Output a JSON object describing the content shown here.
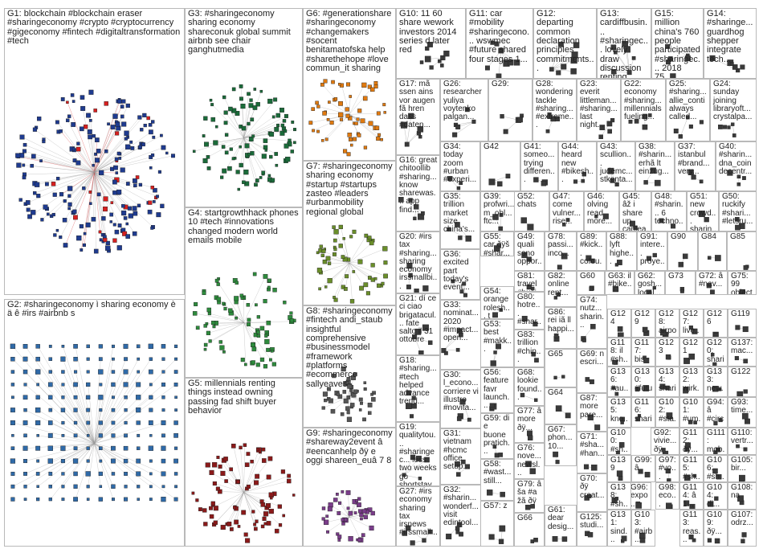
{
  "groups": [
    {
      "id": "G1",
      "label": "G1: blockchain #blockchain eraser #sharingeconomy #crypto #cryptocurrency #gigeconomy #fintech #digitaltransformation #tech",
      "color": "#1f3b8f",
      "accent": "#d62020"
    },
    {
      "id": "G2",
      "label": "G2: #sharingeconomy ì sharing economy è ä ê #irs #airbnb s",
      "color": "#2f6aa8"
    },
    {
      "id": "G3",
      "label": "G3: #sharingeconomy sharing economy shareconuk global summit airbnb see chair ganghutmedia",
      "color": "#1b6b3a"
    },
    {
      "id": "G4",
      "label": "G4: startgrowthhack phones 10 #tech #innovations changed modern world emails mobile",
      "color": "#2e8b3d"
    },
    {
      "id": "G5",
      "label": "G5: millennials renting things instead owning passing fad shift buyer behavior",
      "color": "#8b1a1a"
    },
    {
      "id": "G6",
      "label": "G6: #generationshare #sharingeconomy #changemakers #socent benitamatofska help #sharethehope #love commun_it sharing",
      "color": "#e07a10"
    },
    {
      "id": "G7",
      "label": "G7: #sharingeconomy sharing economy #startup #startups zasteo #leaders #urbanmobility regional global",
      "color": "#6a8e2a"
    },
    {
      "id": "G8",
      "label": "G8: #sharingeconomy #fintech andi_staub insightful comprehensive #businessmodel #framework #platforms #ecommerce sallyeaves",
      "color": "#555555"
    },
    {
      "id": "G9",
      "label": "G9: #sharingeconomy #shareway2event â #eencanhelp ðÿ e oggi shareen_euâ 7 8",
      "color": "#7a3d8a"
    },
    {
      "id": "G10",
      "label": "G10: 11 60 share wework investors 2014 series d later red",
      "color": "#3a3a3a"
    },
    {
      "id": "G11",
      "label": "G11: car #mobility #sharingecono... wswmec #future shared four stages 1...",
      "color": "#3a3a3a"
    },
    {
      "id": "G12",
      "label": "G12: departing common declaration principles commitments...",
      "color": "#3a3a3a"
    },
    {
      "id": "G13",
      "label": "G13: cardiffbusin... #sharingec... lovely draw discussion renting...",
      "color": "#3a3a3a"
    },
    {
      "id": "G14",
      "label": "G14: #sharinge... guardhog shepper integrate tech...",
      "color": "#3a3a3a"
    },
    {
      "id": "G15",
      "label": "G15: million china's 760 people participated #sharingec... 2018 75...",
      "color": "#3a3a3a"
    },
    {
      "id": "G16",
      "label": "G16: great chitoollib #sharing... know sharewas... app find...",
      "color": "#3a3a3a"
    },
    {
      "id": "G17",
      "label": "G17: mã ssen ains vor augen fã hren dass #daten...",
      "color": "#3a3a3a"
    },
    {
      "id": "G18",
      "label": "G18: #sharing... #tech helped advance trend...",
      "color": "#3a3a3a"
    },
    {
      "id": "G19",
      "label": "G19: qualitytou... #sharingec... less two weeks go shortstay...",
      "color": "#3a3a3a"
    },
    {
      "id": "G20",
      "label": "G20: #irs tax #sharing... sharing economy irssmallbi...",
      "color": "#3a3a3a"
    },
    {
      "id": "G21",
      "label": "G21: dí ce ci ciao brigatacul... fate salto il 31 ottobre",
      "color": "#3a3a3a"
    },
    {
      "id": "G22",
      "label": "G22: economy #sharing... millennials fueling...",
      "color": "#3a3a3a"
    },
    {
      "id": "G23",
      "label": "G23: everit littleman... #sharing... last night...",
      "color": "#3a3a3a"
    },
    {
      "id": "G24",
      "label": "G24: sunday joining libraryoft... crystalpa...",
      "color": "#3a3a3a"
    },
    {
      "id": "G25",
      "label": "G25: #sharing... allie_conti always called...",
      "color": "#3a3a3a"
    },
    {
      "id": "G26",
      "label": "G26: researcher yuliya voytenko palgan...",
      "color": "#3a3a3a"
    },
    {
      "id": "G27",
      "label": "G27: #irs economy sharing tax irsnews #irssmall...",
      "color": "#3a3a3a"
    },
    {
      "id": "G28",
      "label": "G28: wondering tackle #sharing... #extreme...",
      "color": "#3a3a3a"
    },
    {
      "id": "G29",
      "label": "G29:",
      "color": "#3a3a3a"
    },
    {
      "id": "G30",
      "label": "G30: l_econo... corriere vi illustro #novita...",
      "color": "#3a3a3a"
    },
    {
      "id": "G31",
      "label": "G31: vietnam #hcmc office setup...",
      "color": "#3a3a3a"
    },
    {
      "id": "G32",
      "label": "G32: #sharin... wonderf... visit edintool...",
      "color": "#3a3a3a"
    },
    {
      "id": "G33",
      "label": "G33: nominat... 2020 #impact... open...",
      "color": "#3a3a3a"
    },
    {
      "id": "G34",
      "label": "G34: today zoom #urban #experi...",
      "color": "#3a3a3a"
    },
    {
      "id": "G35",
      "label": "G35: trillion market size china's...",
      "color": "#3a3a3a"
    },
    {
      "id": "G36",
      "label": "G36: excited part today's event...",
      "color": "#3a3a3a"
    },
    {
      "id": "G37",
      "label": "G37: istanbul #brand... very...",
      "color": "#3a3a3a"
    },
    {
      "id": "G38",
      "label": "G38: #sharin... erhã lt einzug...",
      "color": "#3a3a3a"
    },
    {
      "id": "G39",
      "label": "G39: profwri... m_ohl... ftc...",
      "color": "#3a3a3a"
    },
    {
      "id": "G40",
      "label": "G40: #sharin... dna_coin decentr...",
      "color": "#3a3a3a"
    },
    {
      "id": "G41",
      "label": "G41: someo... trying differen...",
      "color": "#3a3a3a"
    },
    {
      "id": "G42",
      "label": "G42",
      "color": "#3a3a3a"
    },
    {
      "id": "G43",
      "label": "G43: scullion... judemc... stkenta...",
      "color": "#3a3a3a"
    },
    {
      "id": "G44",
      "label": "G44: heard new #bikesh...",
      "color": "#3a3a3a"
    },
    {
      "id": "G45",
      "label": "G45: âž i share up canlea...",
      "color": "#3a3a3a"
    },
    {
      "id": "G46",
      "label": "G46: olving read more...",
      "color": "#3a3a3a"
    },
    {
      "id": "G47",
      "label": "G47: come vulner... rise...",
      "color": "#3a3a3a"
    },
    {
      "id": "G48",
      "label": "G48: #sharin... 6 techno...",
      "color": "#3a3a3a"
    },
    {
      "id": "G49",
      "label": "G49: quali sono oppor...",
      "color": "#3a3a3a"
    },
    {
      "id": "G50",
      "label": "G50: ruckify #shari... #letsru...",
      "color": "#3a3a3a"
    },
    {
      "id": "G51",
      "label": "G51: new crowd... sharin...",
      "color": "#3a3a3a"
    },
    {
      "id": "G52",
      "label": "G52: chats",
      "color": "#3a3a3a"
    },
    {
      "id": "G53",
      "label": "G53: best #makk...",
      "color": "#3a3a3a"
    },
    {
      "id": "G54",
      "label": "G54: orange rolesh... t shirts...",
      "color": "#3a3a3a"
    },
    {
      "id": "G55",
      "label": "G55: car ðÿš #shar...",
      "color": "#3a3a3a"
    },
    {
      "id": "G56",
      "label": "G56: feature favr launch...",
      "color": "#3a3a3a"
    },
    {
      "id": "G57",
      "label": "G57: z",
      "color": "#3a3a3a"
    },
    {
      "id": "G58",
      "label": "G58: #wast... still...",
      "color": "#3a3a3a"
    },
    {
      "id": "G59",
      "label": "G59: di e buone pratich...",
      "color": "#3a3a3a"
    },
    {
      "id": "G60",
      "label": "G60",
      "color": "#3a3a3a"
    },
    {
      "id": "G61",
      "label": "G61: dear desig...",
      "color": "#3a3a3a"
    },
    {
      "id": "G62",
      "label": "G62: gosh... local...",
      "color": "#3a3a3a"
    },
    {
      "id": "G63",
      "label": "G63: il #bike...",
      "color": "#3a3a3a"
    },
    {
      "id": "G64",
      "label": "G64",
      "color": "#3a3a3a"
    },
    {
      "id": "G65",
      "label": "G65",
      "color": "#3a3a3a"
    },
    {
      "id": "G66",
      "label": "G66",
      "color": "#3a3a3a"
    },
    {
      "id": "G67",
      "label": "G67: phon... 10...",
      "color": "#3a3a3a"
    },
    {
      "id": "G68",
      "label": "G68: lookie found...",
      "color": "#3a3a3a"
    },
    {
      "id": "G69",
      "label": "G69: n escri...",
      "color": "#3a3a3a"
    },
    {
      "id": "G70",
      "label": "G70: ðÿ creat...",
      "color": "#3a3a3a"
    },
    {
      "id": "G71",
      "label": "G71: #sha... #han...",
      "color": "#3a3a3a"
    },
    {
      "id": "G72",
      "label": "G72: â #nav...",
      "color": "#3a3a3a"
    },
    {
      "id": "G73",
      "label": "G73",
      "color": "#3a3a3a"
    },
    {
      "id": "G74",
      "label": "G74: nutz... sharin...",
      "color": "#3a3a3a"
    },
    {
      "id": "G75",
      "label": "G75: 99 object...",
      "color": "#3a3a3a"
    },
    {
      "id": "G76",
      "label": "G76: nove... newsl...",
      "color": "#3a3a3a"
    },
    {
      "id": "G77",
      "label": "G77: â more ðÿ...",
      "color": "#3a3a3a"
    },
    {
      "id": "G78",
      "label": "G78: passi... inco...",
      "color": "#3a3a3a"
    },
    {
      "id": "G79",
      "label": "G79: â ša #a žã ðÿ",
      "color": "#3a3a3a"
    },
    {
      "id": "G80",
      "label": "G80: hotre... #shar...",
      "color": "#3a3a3a"
    },
    {
      "id": "G81",
      "label": "G81: travel #busi...",
      "color": "#3a3a3a"
    },
    {
      "id": "G82",
      "label": "G82: online rent...",
      "color": "#3a3a3a"
    },
    {
      "id": "G83",
      "label": "G83: trillion #chin...",
      "color": "#3a3a3a"
    },
    {
      "id": "G84",
      "label": "G84",
      "color": "#3a3a3a"
    },
    {
      "id": "G85",
      "label": "G85",
      "color": "#3a3a3a"
    },
    {
      "id": "G86",
      "label": "G86: rei iã ll happi...",
      "color": "#3a3a3a"
    },
    {
      "id": "G87",
      "label": "G87: more pare...",
      "color": "#3a3a3a"
    },
    {
      "id": "G88",
      "label": "G88: lyft highe...",
      "color": "#3a3a3a"
    },
    {
      "id": "G89",
      "label": "G89: #kick... cofou...",
      "color": "#3a3a3a"
    },
    {
      "id": "G90",
      "label": "G90",
      "color": "#3a3a3a"
    },
    {
      "id": "G91",
      "label": "G91: intere... proye...",
      "color": "#3a3a3a"
    },
    {
      "id": "G92",
      "label": "G92: vivie... ðÿ",
      "color": "#3a3a3a"
    },
    {
      "id": "G93",
      "label": "G93: time...",
      "color": "#3a3a3a"
    },
    {
      "id": "G94",
      "label": "G94: â #circ...",
      "color": "#3a3a3a"
    },
    {
      "id": "G95",
      "label": "G95: #vo...",
      "color": "#3a3a3a"
    },
    {
      "id": "G96",
      "label": "G96: expo...",
      "color": "#3a3a3a"
    },
    {
      "id": "G97",
      "label": "G97: #vo...",
      "color": "#3a3a3a"
    },
    {
      "id": "G98",
      "label": "G98: eco...",
      "color": "#3a3a3a"
    },
    {
      "id": "G99",
      "label": "G99: â",
      "color": "#3a3a3a"
    },
    {
      "id": "G100",
      "label": "G100: #sh...",
      "color": "#3a3a3a"
    },
    {
      "id": "G101",
      "label": "G101: #um...",
      "color": "#3a3a3a"
    },
    {
      "id": "G102",
      "label": "G102: #sta...",
      "color": "#3a3a3a"
    },
    {
      "id": "G103",
      "label": "G103: #airb...",
      "color": "#3a3a3a"
    },
    {
      "id": "G104",
      "label": "G104: di...",
      "color": "#3a3a3a"
    },
    {
      "id": "G105",
      "label": "G105: bir...",
      "color": "#3a3a3a"
    },
    {
      "id": "G106",
      "label": "G106: #sh...",
      "color": "#3a3a3a"
    },
    {
      "id": "G107",
      "label": "G107: odrz...",
      "color": "#3a3a3a"
    },
    {
      "id": "G108",
      "label": "G108: na",
      "color": "#3a3a3a"
    },
    {
      "id": "G109",
      "label": "G109: ðÿ...",
      "color": "#3a3a3a"
    },
    {
      "id": "G110",
      "label": "G110: vertr...",
      "color": "#3a3a3a"
    },
    {
      "id": "G111",
      "label": "G111: mob...",
      "color": "#3a3a3a"
    },
    {
      "id": "G112",
      "label": "G112: ðÿ...",
      "color": "#3a3a3a"
    },
    {
      "id": "G113",
      "label": "G113: reas...",
      "color": "#3a3a3a"
    },
    {
      "id": "G114",
      "label": "G114: â 1...",
      "color": "#3a3a3a"
    },
    {
      "id": "G115",
      "label": "G115: #sh...",
      "color": "#3a3a3a"
    },
    {
      "id": "G116",
      "label": "G116: shari...",
      "color": "#3a3a3a"
    },
    {
      "id": "G117",
      "label": "G117: bis",
      "color": "#3a3a3a"
    },
    {
      "id": "G118",
      "label": "G118: il #sh...",
      "color": "#3a3a3a"
    },
    {
      "id": "G119",
      "label": "G119",
      "color": "#3a3a3a"
    },
    {
      "id": "G120",
      "label": "G120: sharin...",
      "color": "#3a3a3a"
    },
    {
      "id": "G121",
      "label": "G121",
      "color": "#3a3a3a"
    },
    {
      "id": "G122",
      "label": "G122",
      "color": "#3a3a3a"
    },
    {
      "id": "G123",
      "label": "G123",
      "color": "#3a3a3a"
    },
    {
      "id": "G124",
      "label": "G124",
      "color": "#3a3a3a"
    },
    {
      "id": "G125",
      "label": "G125: studi...",
      "color": "#3a3a3a"
    },
    {
      "id": "G126",
      "label": "G126",
      "color": "#3a3a3a"
    },
    {
      "id": "G127",
      "label": "G127: live...",
      "color": "#3a3a3a"
    },
    {
      "id": "G128",
      "label": "G128: airpo...",
      "color": "#3a3a3a"
    },
    {
      "id": "G129",
      "label": "G129",
      "color": "#3a3a3a"
    },
    {
      "id": "G130",
      "label": "G130: #futu...",
      "color": "#3a3a3a"
    },
    {
      "id": "G131",
      "label": "G131: sind...",
      "color": "#3a3a3a"
    },
    {
      "id": "G132",
      "label": "G132: wirk...",
      "color": "#3a3a3a"
    },
    {
      "id": "G133",
      "label": "G133: new...",
      "color": "#3a3a3a"
    },
    {
      "id": "G134",
      "label": "G134: shari...",
      "color": "#3a3a3a"
    },
    {
      "id": "G135",
      "label": "G135: kno...",
      "color": "#3a3a3a"
    },
    {
      "id": "G136",
      "label": "G136: #au...",
      "color": "#3a3a3a"
    },
    {
      "id": "G137",
      "label": "G137: mac...",
      "color": "#3a3a3a"
    },
    {
      "id": "G138",
      "label": "G138: #sh...",
      "color": "#3a3a3a"
    },
    {
      "id": "G139",
      "label": "G139",
      "color": "#3a3a3a"
    }
  ]
}
